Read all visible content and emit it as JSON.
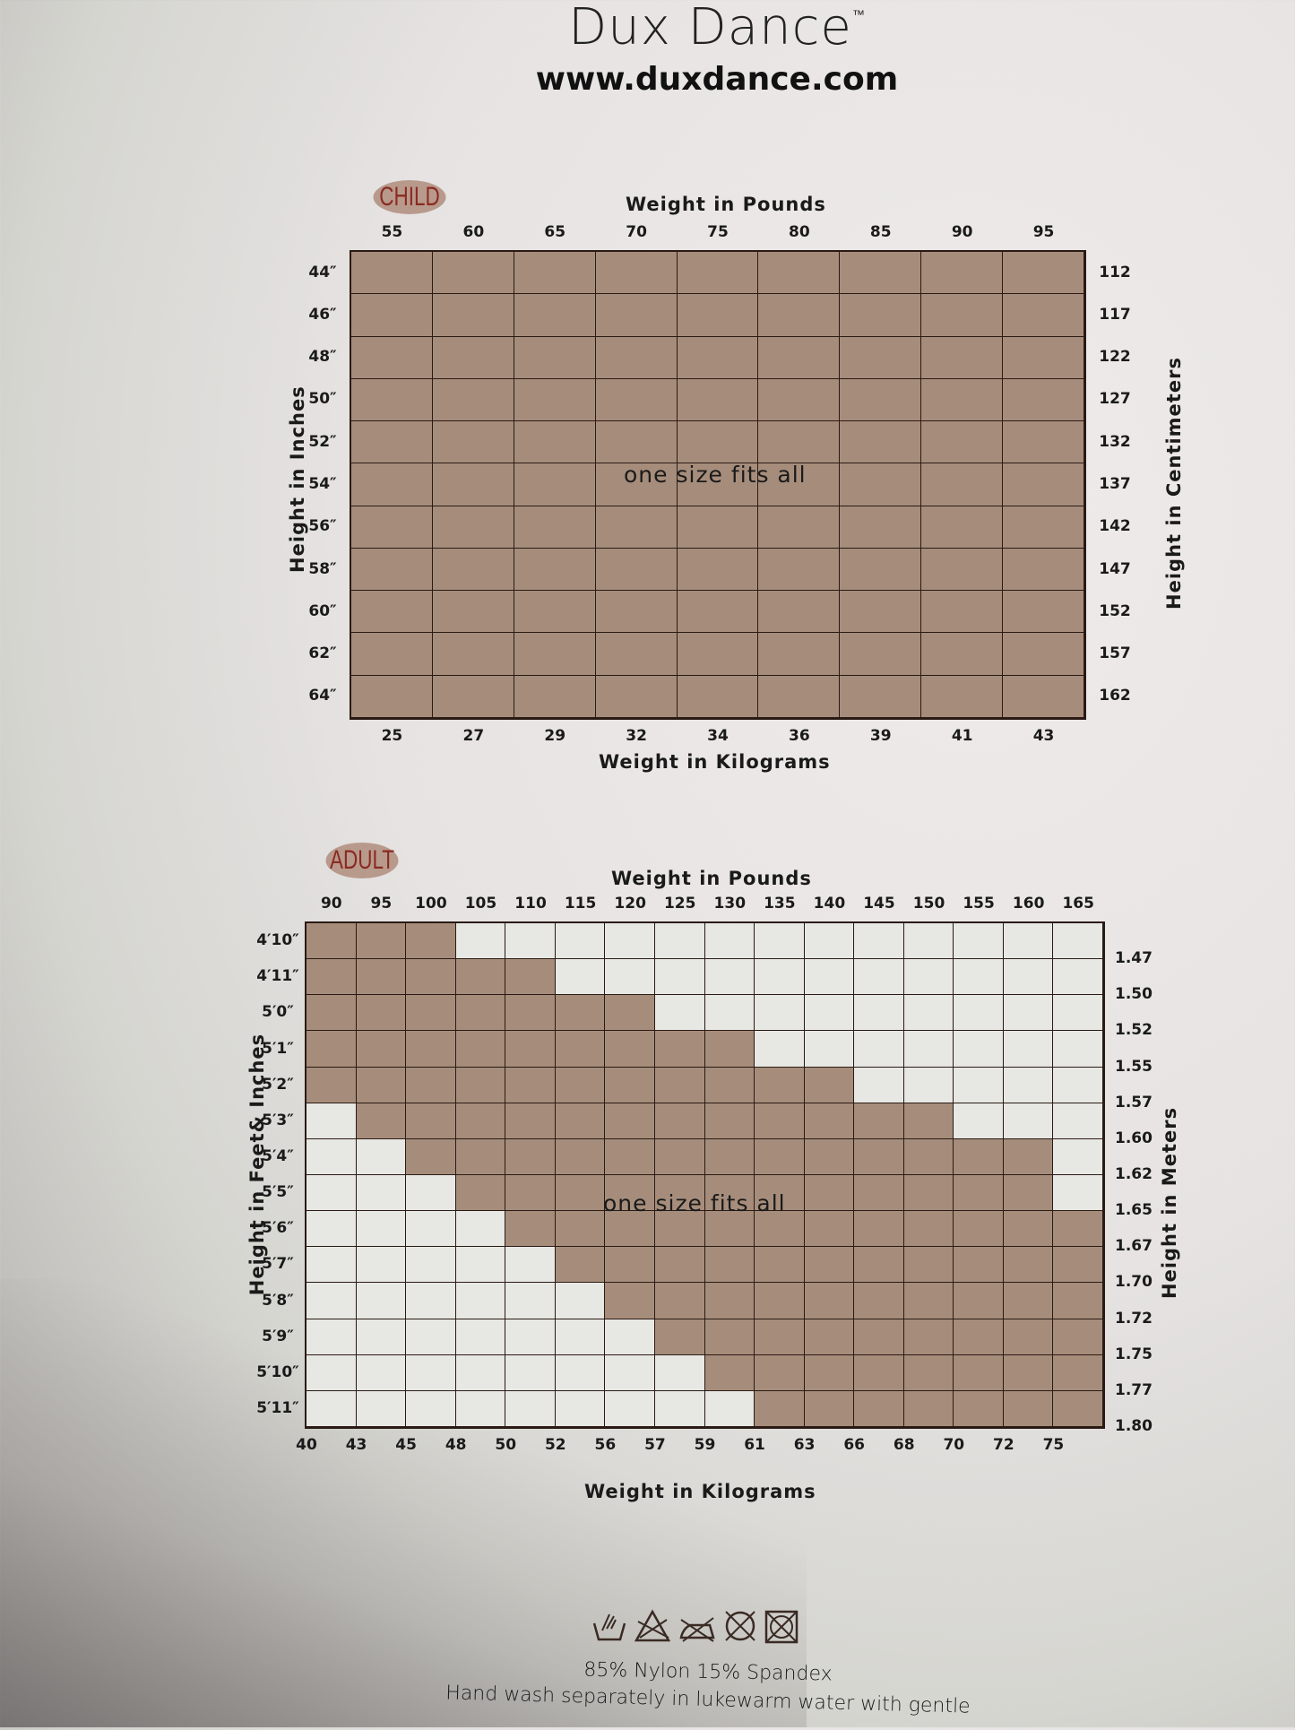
{
  "brand": {
    "name": "Dux Dance",
    "tm": "™",
    "url": "www.duxdance.com"
  },
  "colors": {
    "fit": "#a68d7b",
    "no_fit": "#e7e7e3",
    "pill": "#b89a8c",
    "pill_text": "#8a2a22",
    "grid_line": "#2a1a14"
  },
  "chart_data": [
    {
      "type": "heatmap",
      "title": "CHILD",
      "xlabel_top": "Weight in Pounds",
      "xlabel_bottom": "Weight in Kilograms",
      "ylabel_left": "Height in Inches",
      "ylabel_right": "Height in Centimeters",
      "x_pounds": [
        "55",
        "60",
        "65",
        "70",
        "75",
        "80",
        "85",
        "90",
        "95"
      ],
      "x_kilograms": [
        "25",
        "27",
        "29",
        "32",
        "34",
        "36",
        "39",
        "41",
        "43"
      ],
      "y_inches": [
        "44″",
        "46″",
        "48″",
        "50″",
        "52″",
        "54″",
        "56″",
        "58″",
        "60″",
        "62″",
        "64″"
      ],
      "y_centimeters": [
        "112",
        "117",
        "122",
        "127",
        "132",
        "137",
        "142",
        "147",
        "152",
        "157",
        "162"
      ],
      "fit_ranges": [
        [
          0,
          8
        ],
        [
          0,
          8
        ],
        [
          0,
          8
        ],
        [
          0,
          8
        ],
        [
          0,
          8
        ],
        [
          0,
          8
        ],
        [
          0,
          8
        ],
        [
          0,
          8
        ],
        [
          0,
          8
        ],
        [
          0,
          8
        ],
        [
          0,
          8
        ]
      ],
      "annotation": "one size fits all"
    },
    {
      "type": "heatmap",
      "title": "ADULT",
      "xlabel_top": "Weight in Pounds",
      "xlabel_bottom": "Weight in Kilograms",
      "ylabel_left": "Height in Feet& Inches",
      "ylabel_right": "Height in Meters",
      "x_pounds": [
        "90",
        "95",
        "100",
        "105",
        "110",
        "115",
        "120",
        "125",
        "130",
        "135",
        "140",
        "145",
        "150",
        "155",
        "160",
        "165"
      ],
      "x_kilograms": [
        "40",
        "43",
        "45",
        "48",
        "50",
        "52",
        "56",
        "57",
        "59",
        "61",
        "63",
        "66",
        "68",
        "70",
        "72",
        "75"
      ],
      "y_feet_inches": [
        "4′10″",
        "4′11″",
        "5′0″",
        "5′1″",
        "5′2″",
        "5′3″",
        "5′4″",
        "5′5″",
        "5′6″",
        "5′7″",
        "5′8″",
        "5′9″",
        "5′10″",
        "5′11″"
      ],
      "y_meters": [
        "1.47",
        "1.50",
        "1.52",
        "1.55",
        "1.57",
        "1.60",
        "1.62",
        "1.65",
        "1.67",
        "1.70",
        "1.72",
        "1.75",
        "1.77",
        "1.80"
      ],
      "fit_ranges": [
        [
          0,
          2
        ],
        [
          0,
          4
        ],
        [
          0,
          6
        ],
        [
          0,
          8
        ],
        [
          0,
          10
        ],
        [
          1,
          12
        ],
        [
          2,
          14
        ],
        [
          3,
          14
        ],
        [
          4,
          15
        ],
        [
          5,
          15
        ],
        [
          6,
          15
        ],
        [
          7,
          15
        ],
        [
          8,
          15
        ],
        [
          9,
          15
        ]
      ],
      "annotation": "one size fits all"
    }
  ],
  "care": {
    "icons": [
      "hand-wash-icon",
      "do-not-bleach-icon",
      "do-not-iron-icon",
      "do-not-dry-clean-icon",
      "do-not-tumble-dry-icon"
    ],
    "fabric": "85% Nylon  15% Spandex",
    "instructions": "Hand wash separately in lukewarm water with gentle"
  }
}
